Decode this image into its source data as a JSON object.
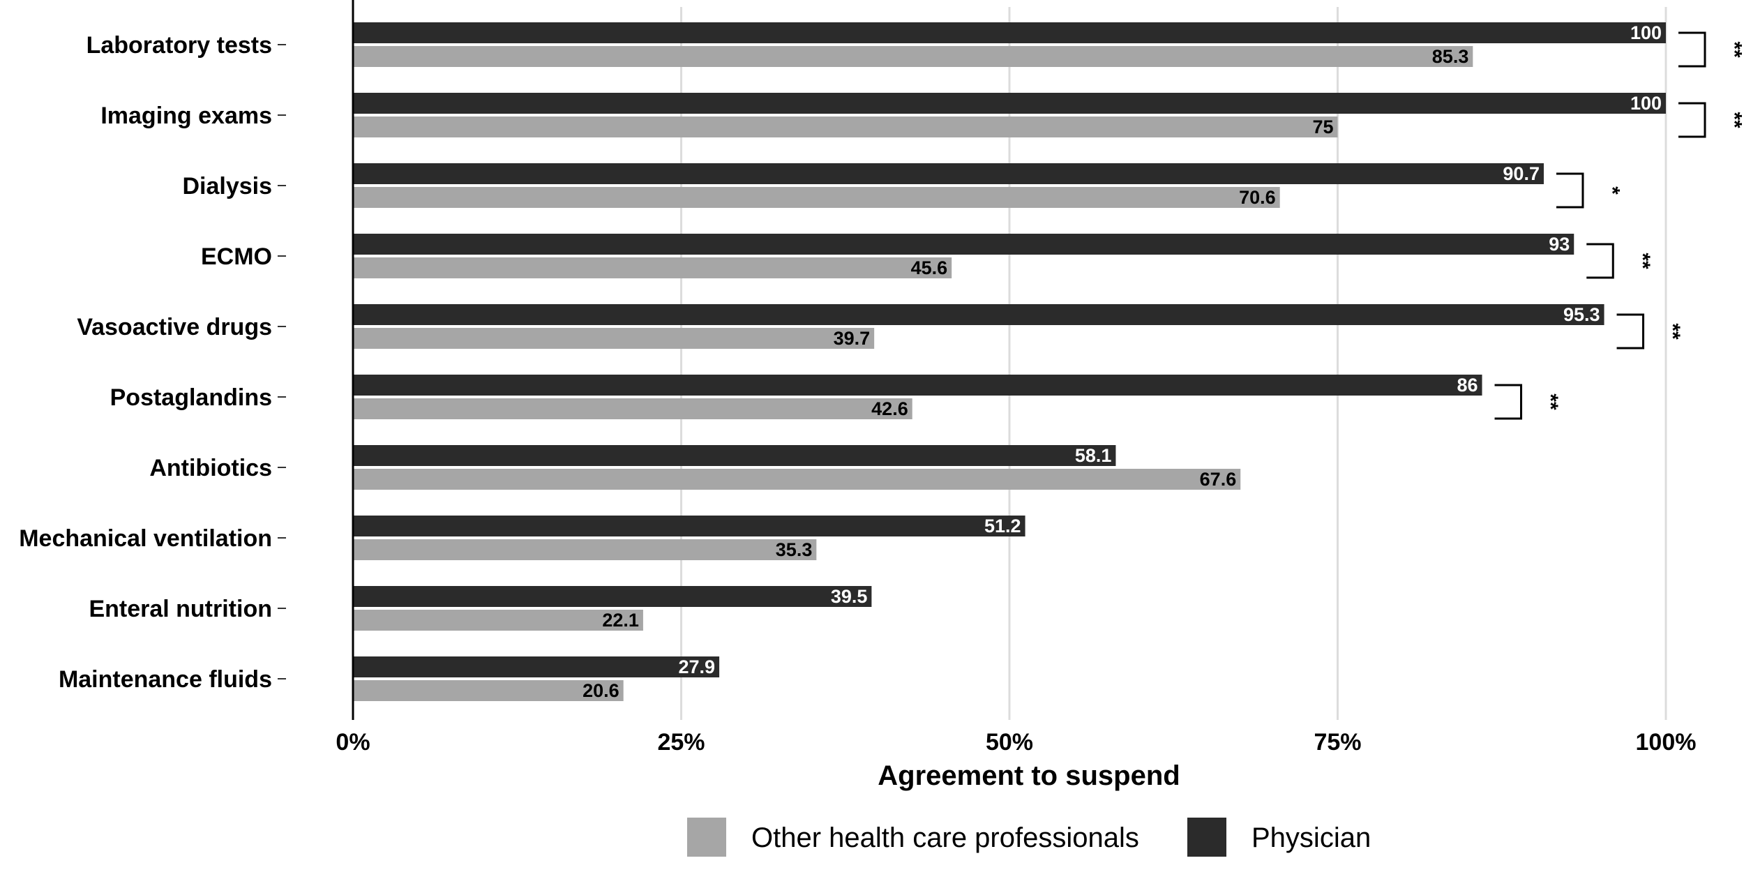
{
  "chart_data": {
    "type": "bar",
    "orientation": "horizontal",
    "categories": [
      "Laboratory tests",
      "Imaging exams",
      "Dialysis",
      "ECMO",
      "Vasoactive drugs",
      "Postaglandins",
      "Antibiotics",
      "Mechanical ventilation",
      "Enteral nutrition",
      "Maintenance fluids"
    ],
    "series": [
      {
        "name": "Physician",
        "color": "#2b2b2b",
        "label_color": "#ffffff",
        "values": [
          100,
          100,
          90.7,
          93,
          95.3,
          86,
          58.1,
          51.2,
          39.5,
          27.9
        ],
        "labels": [
          "100",
          "100",
          "90.7",
          "93",
          "95.3",
          "86",
          "58.1",
          "51.2",
          "39.5",
          "27.9"
        ]
      },
      {
        "name": "Other health care professionals",
        "color": "#a6a6a6",
        "label_color": "#000000",
        "values": [
          85.3,
          75,
          70.6,
          45.6,
          39.7,
          42.6,
          67.6,
          35.3,
          22.1,
          20.6
        ],
        "labels": [
          "85.3",
          "75",
          "70.6",
          "45.6",
          "39.7",
          "42.6",
          "67.6",
          "35.3",
          "22.1",
          "20.6"
        ]
      }
    ],
    "significance": [
      {
        "category": "Laboratory tests",
        "marker": "**"
      },
      {
        "category": "Imaging exams",
        "marker": "**"
      },
      {
        "category": "Dialysis",
        "marker": "*"
      },
      {
        "category": "ECMO",
        "marker": "**"
      },
      {
        "category": "Vasoactive drugs",
        "marker": "**"
      },
      {
        "category": "Postaglandins",
        "marker": "**"
      }
    ],
    "xlabel": "Agreement to suspend",
    "xlim": [
      0,
      100
    ],
    "xticks": [
      0,
      25,
      50,
      75,
      100
    ],
    "xtick_labels": [
      "0%",
      "25%",
      "50%",
      "75%",
      "100%"
    ],
    "grid": "vertical major",
    "legend": {
      "position": "bottom",
      "entries": [
        {
          "name": "Other health care professionals",
          "color": "#a6a6a6"
        },
        {
          "name": "Physician",
          "color": "#2b2b2b"
        }
      ]
    }
  }
}
